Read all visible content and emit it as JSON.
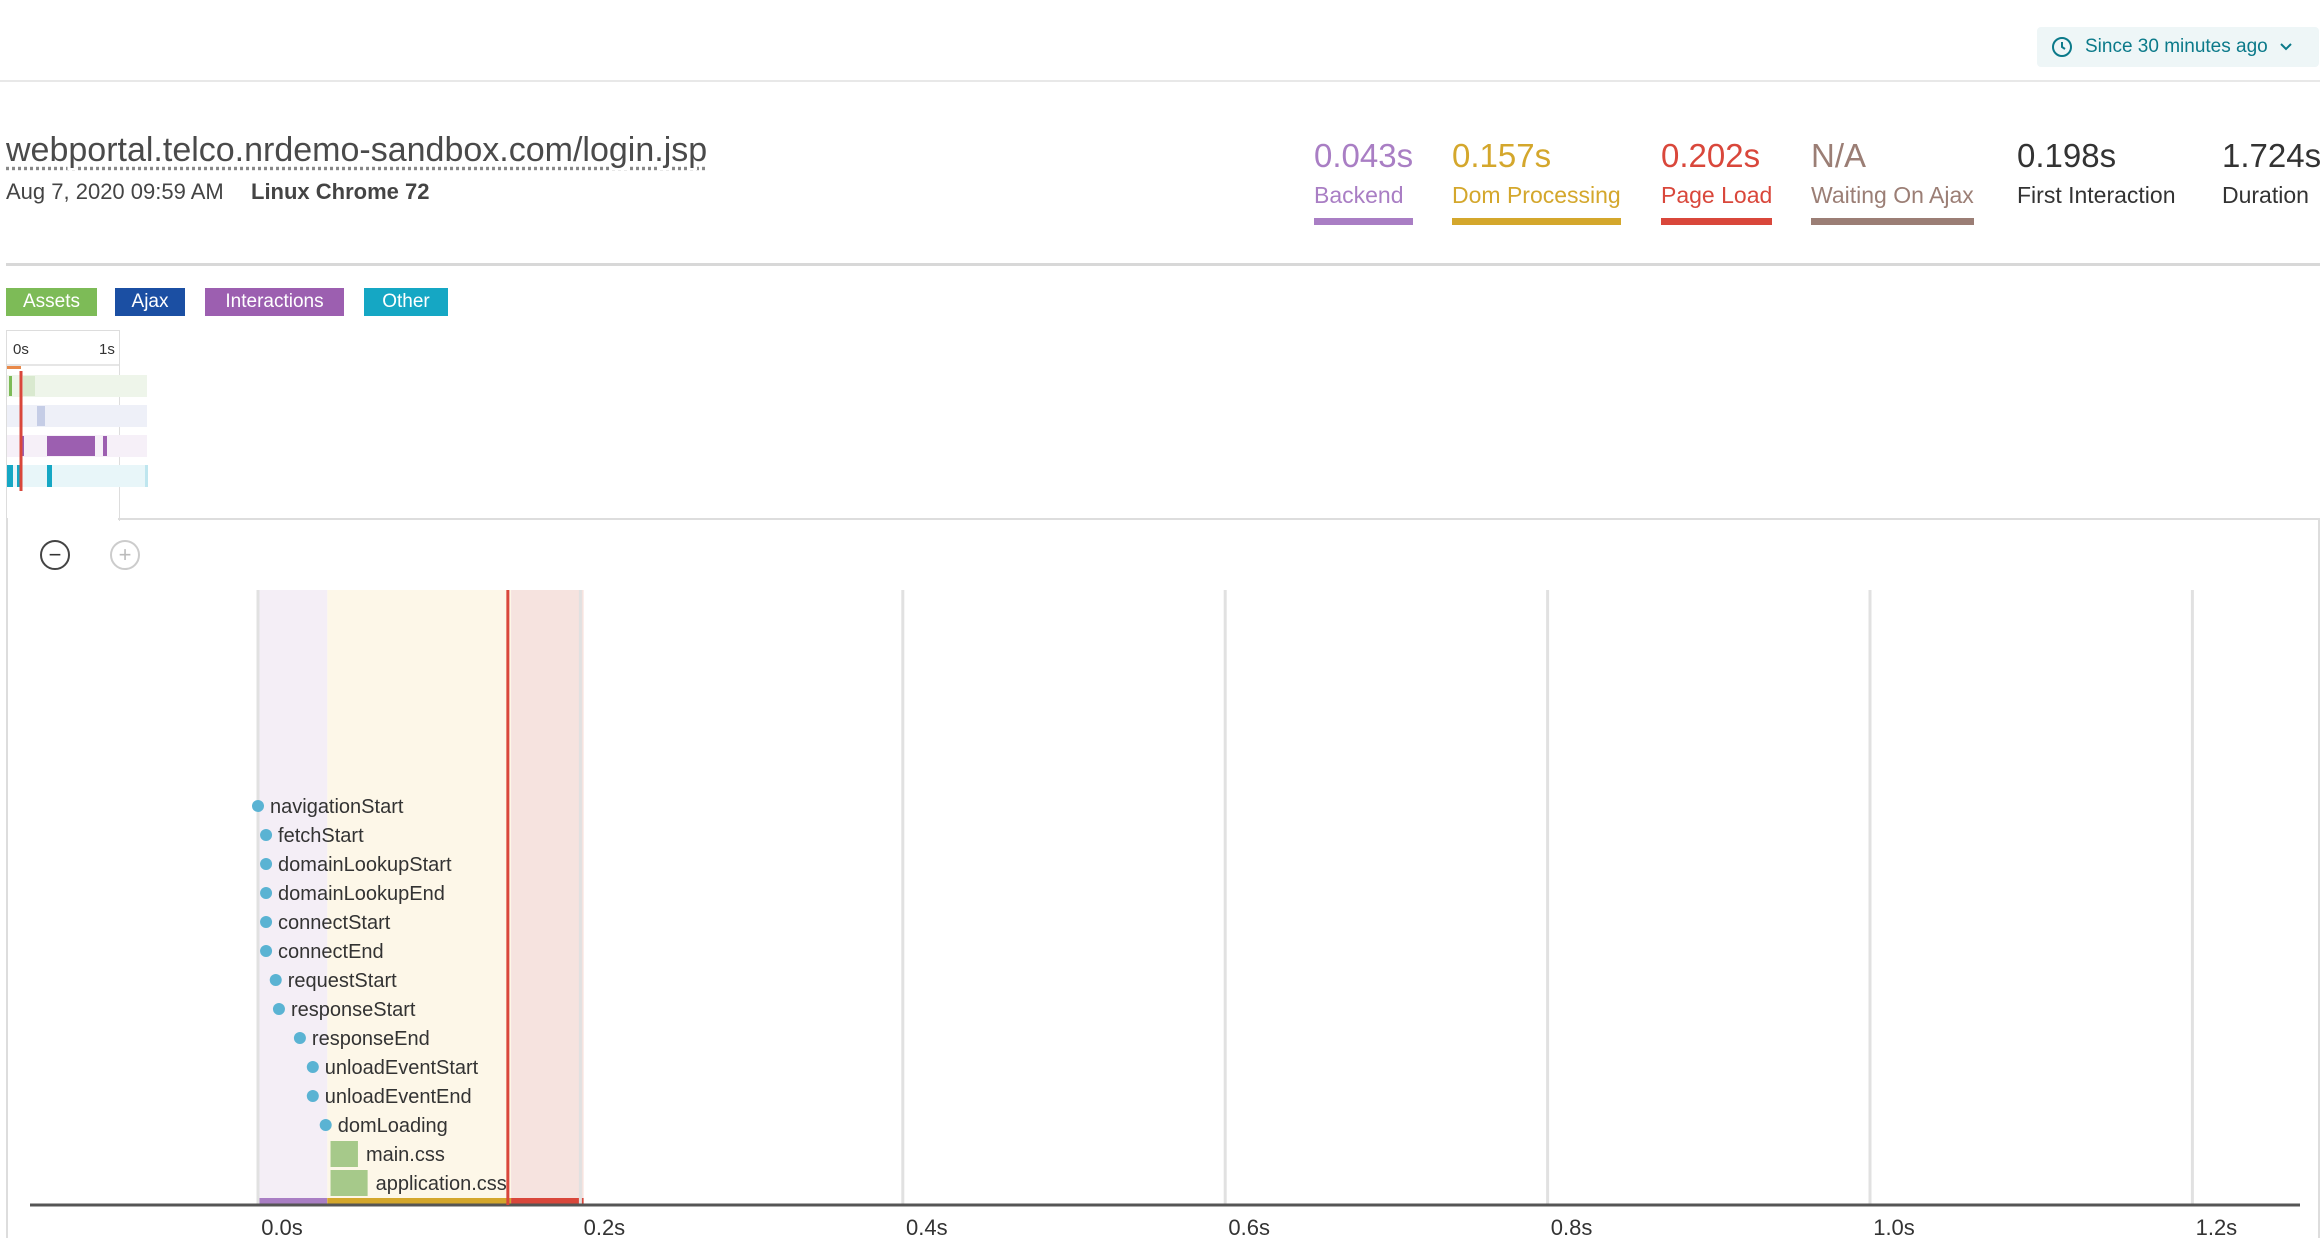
{
  "time_picker": {
    "label": "Since 30 minutes ago"
  },
  "page": {
    "url": "webportal.telco.nrdemo-sandbox.com/login.jsp",
    "date": "Aug 7, 2020 09:59 AM",
    "browser": "Linux Chrome 72"
  },
  "metrics": [
    {
      "value": "0.043s",
      "label": "Backend",
      "color": "#a97ec4"
    },
    {
      "value": "0.157s",
      "label": "Dom Processing",
      "color": "#d4a72c"
    },
    {
      "value": "0.202s",
      "label": "Page Load",
      "color": "#d9473b"
    },
    {
      "value": "N/A",
      "label": "Waiting On Ajax",
      "color": "#9b7e75"
    },
    {
      "value": "0.198s",
      "label": "First Interaction",
      "color": "#333333"
    },
    {
      "value": "1.724s",
      "label": "Duration",
      "color": "#333333"
    }
  ],
  "legend": [
    {
      "label": "Assets",
      "color": "#7dbb57"
    },
    {
      "label": "Ajax",
      "color": "#1b4fa3"
    },
    {
      "label": "Interactions",
      "color": "#9c5fb0"
    },
    {
      "label": "Other",
      "color": "#15a7c4"
    }
  ],
  "minimap": {
    "start_label": "0s",
    "end_label": "1s"
  },
  "chart_data": {
    "type": "timeline",
    "x_ticks": [
      "0.0s",
      "0.2s",
      "0.4s",
      "0.6s",
      "0.8s",
      "1.0s",
      "1.2s"
    ],
    "phases": [
      {
        "name": "Backend",
        "start": 0.0,
        "end": 0.043,
        "color": "#a97ec4"
      },
      {
        "name": "Dom Processing",
        "start": 0.043,
        "end": 0.157,
        "color": "#d4a72c"
      },
      {
        "name": "Page Load",
        "start": 0.157,
        "end": 0.202,
        "color": "#d9473b"
      }
    ],
    "page_load_marker": 0.155,
    "events": [
      {
        "name": "navigationStart",
        "t": 0.0
      },
      {
        "name": "fetchStart",
        "t": 0.005
      },
      {
        "name": "domainLookupStart",
        "t": 0.005
      },
      {
        "name": "domainLookupEnd",
        "t": 0.005
      },
      {
        "name": "connectStart",
        "t": 0.005
      },
      {
        "name": "connectEnd",
        "t": 0.005
      },
      {
        "name": "requestStart",
        "t": 0.011
      },
      {
        "name": "responseStart",
        "t": 0.013
      },
      {
        "name": "responseEnd",
        "t": 0.026
      },
      {
        "name": "unloadEventStart",
        "t": 0.034
      },
      {
        "name": "unloadEventEnd",
        "t": 0.034
      },
      {
        "name": "domLoading",
        "t": 0.042
      }
    ],
    "assets": [
      {
        "name": "main.css",
        "start": 0.045,
        "end": 0.062
      },
      {
        "name": "application.css",
        "start": 0.045,
        "end": 0.068
      }
    ]
  }
}
